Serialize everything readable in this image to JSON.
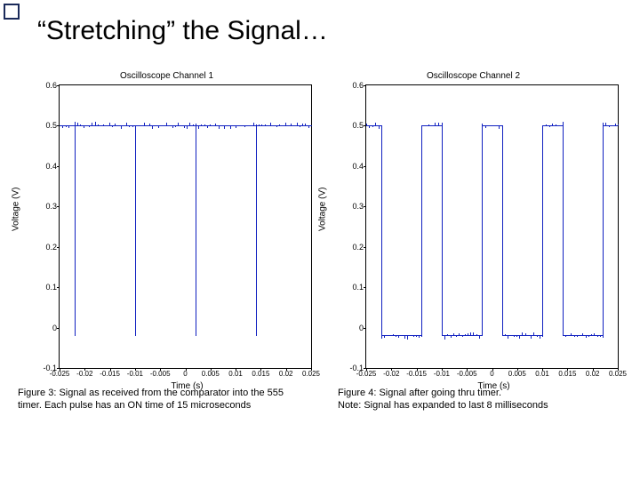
{
  "slide": {
    "title": "“Stretching” the Signal…"
  },
  "chart_common": {
    "ylabel": "Voltage (V)",
    "xlabel": "Time (s)",
    "xlim": [
      -0.025,
      0.025
    ],
    "xticks": [
      -0.025,
      -0.02,
      -0.015,
      -0.01,
      -0.005,
      0,
      0.005,
      0.01,
      0.015,
      0.02,
      0.025
    ],
    "xtick_labels": [
      "-0.025",
      "-0.02",
      "-0.015",
      "-0.01",
      "-0.005",
      "0",
      "0.005",
      "0.01",
      "0.015",
      "0.02",
      "0.025"
    ],
    "ylim": [
      -0.1,
      0.6
    ],
    "yticks": [
      -0.1,
      0,
      0.1,
      0.2,
      0.3,
      0.4,
      0.5,
      0.6
    ],
    "ytick_labels": [
      "-0.1",
      "0",
      "0.1",
      "0.2",
      "0.3",
      "0.4",
      "0.5",
      "0.6"
    ],
    "line_color": "#1020c0",
    "axis_color": "#000000",
    "background_color": "#ffffff",
    "title_fontsize": 10,
    "label_fontsize": 10,
    "tick_fontsize": 9
  },
  "chart1": {
    "type": "line",
    "title": "Oscilloscope Channel 1",
    "baseline": 0.5,
    "spikes_x": [
      -0.022,
      -0.01,
      0.002,
      0.014
    ],
    "spike_low": -0.02,
    "noise_band": 0.018
  },
  "chart2": {
    "type": "line",
    "title": "Oscilloscope Channel 2",
    "high": 0.5,
    "low": -0.02,
    "edges_x": [
      -0.022,
      -0.014,
      -0.01,
      -0.002,
      0.002,
      0.01,
      0.014,
      0.022
    ],
    "noise_band": 0.018
  },
  "captions": {
    "fig3": "Figure 3: Signal as received from the comparator into the 555   timer.  Each pulse has an ON time of 15 microseconds",
    "fig4_line1": "Figure 4: Signal after going thru timer.",
    "fig4_line2": "Note: Signal has expanded to last 8 milliseconds"
  }
}
